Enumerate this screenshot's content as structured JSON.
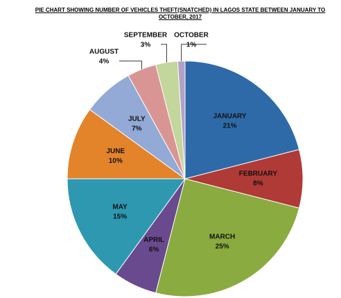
{
  "chart_data": {
    "type": "pie",
    "title": "PIE CHART SHOWING NUMBER OF VEHICLES THEFT(SNATCHED) IN LAGOS STATE BETWEEN JANUARY TO OCTOBER, 2017",
    "categories": [
      "JANUARY",
      "FEBRUARY",
      "MARCH",
      "APRIL",
      "MAY",
      "JUNE",
      "JULY",
      "AUGUST",
      "SEPTEMBER",
      "OCTOBER"
    ],
    "values": [
      21,
      8,
      25,
      6,
      15,
      10,
      7,
      4,
      3,
      1
    ],
    "value_labels": [
      "21%",
      "8%",
      "25%",
      "6%",
      "15%",
      "10%",
      "7%",
      "4%",
      "3%",
      "1%"
    ],
    "colors": [
      "#2e6aa8",
      "#b03a36",
      "#8aab3f",
      "#6a4a8e",
      "#2d98b0",
      "#e3832a",
      "#93a9d6",
      "#d99594",
      "#c3d69b",
      "#b3a2c7"
    ]
  }
}
